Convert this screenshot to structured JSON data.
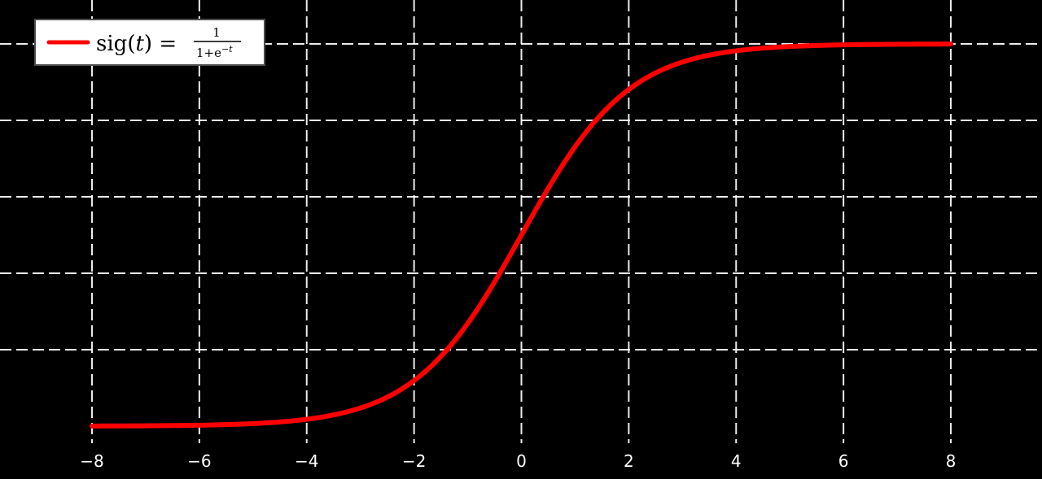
{
  "chart_data": {
    "type": "line",
    "title": "",
    "xlabel": "",
    "ylabel": "",
    "xlim": [
      -8,
      8
    ],
    "ylim": [
      0,
      1
    ],
    "x_ticks": [
      -8,
      -6,
      -4,
      -2,
      0,
      2,
      4,
      6,
      8
    ],
    "y_gridlines": [
      0.2,
      0.4,
      0.6,
      0.8,
      1
    ],
    "grid": true,
    "legend_position": "top-left",
    "series": [
      {
        "name": "sig(t) = 1/(1+e^-t)",
        "function": "1/(1+e^-t)",
        "color": "#ff0000",
        "x": [
          -8,
          -7,
          -6,
          -5,
          -4,
          -3,
          -2,
          -1,
          0,
          1,
          2,
          3,
          4,
          5,
          6,
          7,
          8
        ],
        "y": [
          0.0003,
          0.0009,
          0.0025,
          0.0067,
          0.018,
          0.0474,
          0.1192,
          0.2689,
          0.5,
          0.7311,
          0.8808,
          0.9526,
          0.982,
          0.9933,
          0.9975,
          0.9991,
          0.9997
        ]
      }
    ],
    "legend": {
      "fn": "sig",
      "var": "t",
      "numerator": "1",
      "denominator_base": "1+e",
      "denominator_exp": "−t"
    }
  },
  "colors": {
    "background": "#000000",
    "grid": "#ffffff",
    "curve": "#ff0000",
    "legend_bg": "#ffffff"
  }
}
